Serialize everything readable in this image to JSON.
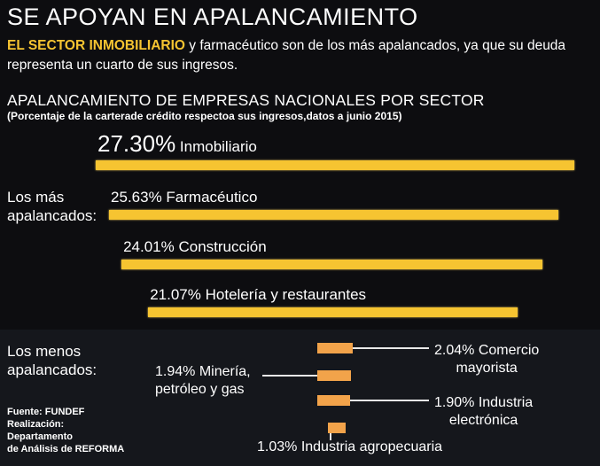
{
  "headline": "SE APOYAN EN APALANCAMIENTO",
  "subhead": {
    "highlight": "EL SECTOR INMOBILIARIO",
    "rest": " y farmacéutico son de los más apalancados, ya que su deuda representa un cuarto de sus ingresos."
  },
  "chart_data": {
    "type": "bar",
    "title": "APALANCAMIENTO DE EMPRESAS NACIONALES POR SECTOR",
    "subtitle": "(Porcentaje de la carterade crédito respectoa sus ingresos,datos a junio 2015)",
    "groups": {
      "most": "Los más\napalancados:",
      "least": "Los menos\napalancados:"
    },
    "most_leveraged": [
      {
        "value": 27.3,
        "label": "27.30%",
        "name": "Inmobiliario"
      },
      {
        "value": 25.63,
        "label": "25.63%",
        "name": "Farmacéutico"
      },
      {
        "value": 24.01,
        "label": "24.01%",
        "name": "Construcción"
      },
      {
        "value": 21.07,
        "label": "21.07%",
        "name": "Hotelería y restaurantes"
      }
    ],
    "least_leveraged": [
      {
        "value": 2.04,
        "text": "2.04% Comercio\nmayorista"
      },
      {
        "value": 1.94,
        "text": "1.94% Minería,\npetróleo y gas"
      },
      {
        "value": 1.9,
        "text": "1.90% Industria\nelectrónica"
      },
      {
        "value": 1.03,
        "text": "1.03% Industria agropecuaria"
      }
    ],
    "colors": {
      "most": "#f6c431",
      "least": "#f2a34a"
    }
  },
  "source": "Fuente: FUNDEF\nRealización:\nDepartamento\nde Análisis de REFORMA"
}
